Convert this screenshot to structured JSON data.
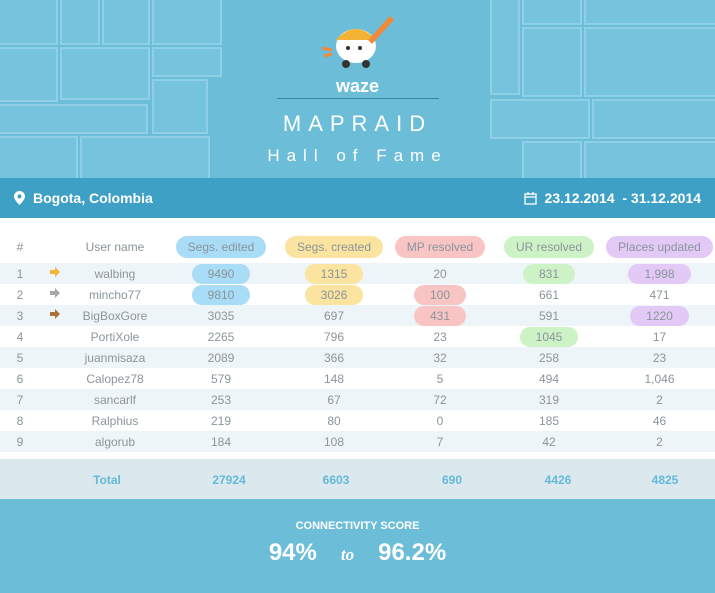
{
  "header": {
    "brand": "waze",
    "title": "MAPRAID",
    "subtitle": "Hall of Fame"
  },
  "info": {
    "location": "Bogota, Colombia",
    "date_range": "23.12.2014  - 31.12.2014",
    "location_icon": "map-pin-icon",
    "date_icon": "calendar-icon"
  },
  "colors": {
    "segs_edited": "#a9dcf6",
    "segs_created": "#fbe3a0",
    "mp_resolved": "#f8c4c4",
    "ur_resolved": "#cdf2c6",
    "places_updated": "#e2c9f6"
  },
  "table": {
    "columns": [
      "#",
      "User name",
      "Segs. edited",
      "Segs. created",
      "MP resolved",
      "UR resolved",
      "Places updated"
    ],
    "rows": [
      {
        "rank": "1",
        "user": "walbing",
        "medal": "gold",
        "se": "9490",
        "sc": "1315",
        "mp": "20",
        "ur": "831",
        "pu": "1,998",
        "hl": [
          "se",
          "sc",
          "ur",
          "pu"
        ]
      },
      {
        "rank": "2",
        "user": "mincho77",
        "medal": "silver",
        "se": "9810",
        "sc": "3026",
        "mp": "100",
        "ur": "661",
        "pu": "471",
        "hl": [
          "se",
          "sc",
          "mp"
        ]
      },
      {
        "rank": "3",
        "user": "BigBoxGore",
        "medal": "bronze",
        "se": "3035",
        "sc": "697",
        "mp": "431",
        "ur": "591",
        "pu": "1220",
        "hl": [
          "mp",
          "pu"
        ]
      },
      {
        "rank": "4",
        "user": "PortiXole",
        "se": "2265",
        "sc": "796",
        "mp": "23",
        "ur": "1045",
        "pu": "17",
        "hl": [
          "ur"
        ]
      },
      {
        "rank": "5",
        "user": "juanmisaza",
        "se": "2089",
        "sc": "366",
        "mp": "32",
        "ur": "258",
        "pu": "23",
        "hl": []
      },
      {
        "rank": "6",
        "user": "Calopez78",
        "se": "579",
        "sc": "148",
        "mp": "5",
        "ur": "494",
        "pu": "1,046",
        "hl": []
      },
      {
        "rank": "7",
        "user": "sancarlf",
        "se": "253",
        "sc": "67",
        "mp": "72",
        "ur": "319",
        "pu": "2",
        "hl": []
      },
      {
        "rank": "8",
        "user": "Ralphius",
        "se": "219",
        "sc": "80",
        "mp": "0",
        "ur": "185",
        "pu": "46",
        "hl": []
      },
      {
        "rank": "9",
        "user": "algorub",
        "se": "184",
        "sc": "108",
        "mp": "7",
        "ur": "42",
        "pu": "2",
        "hl": []
      }
    ],
    "total": {
      "label": "Total",
      "se": "27924",
      "sc": "6603",
      "mp": "690",
      "ur": "4426",
      "pu": "4825"
    }
  },
  "footer": {
    "label": "CONNECTIVITY SCORE",
    "from": "94%",
    "to_word": "to",
    "to": "96.2%"
  }
}
